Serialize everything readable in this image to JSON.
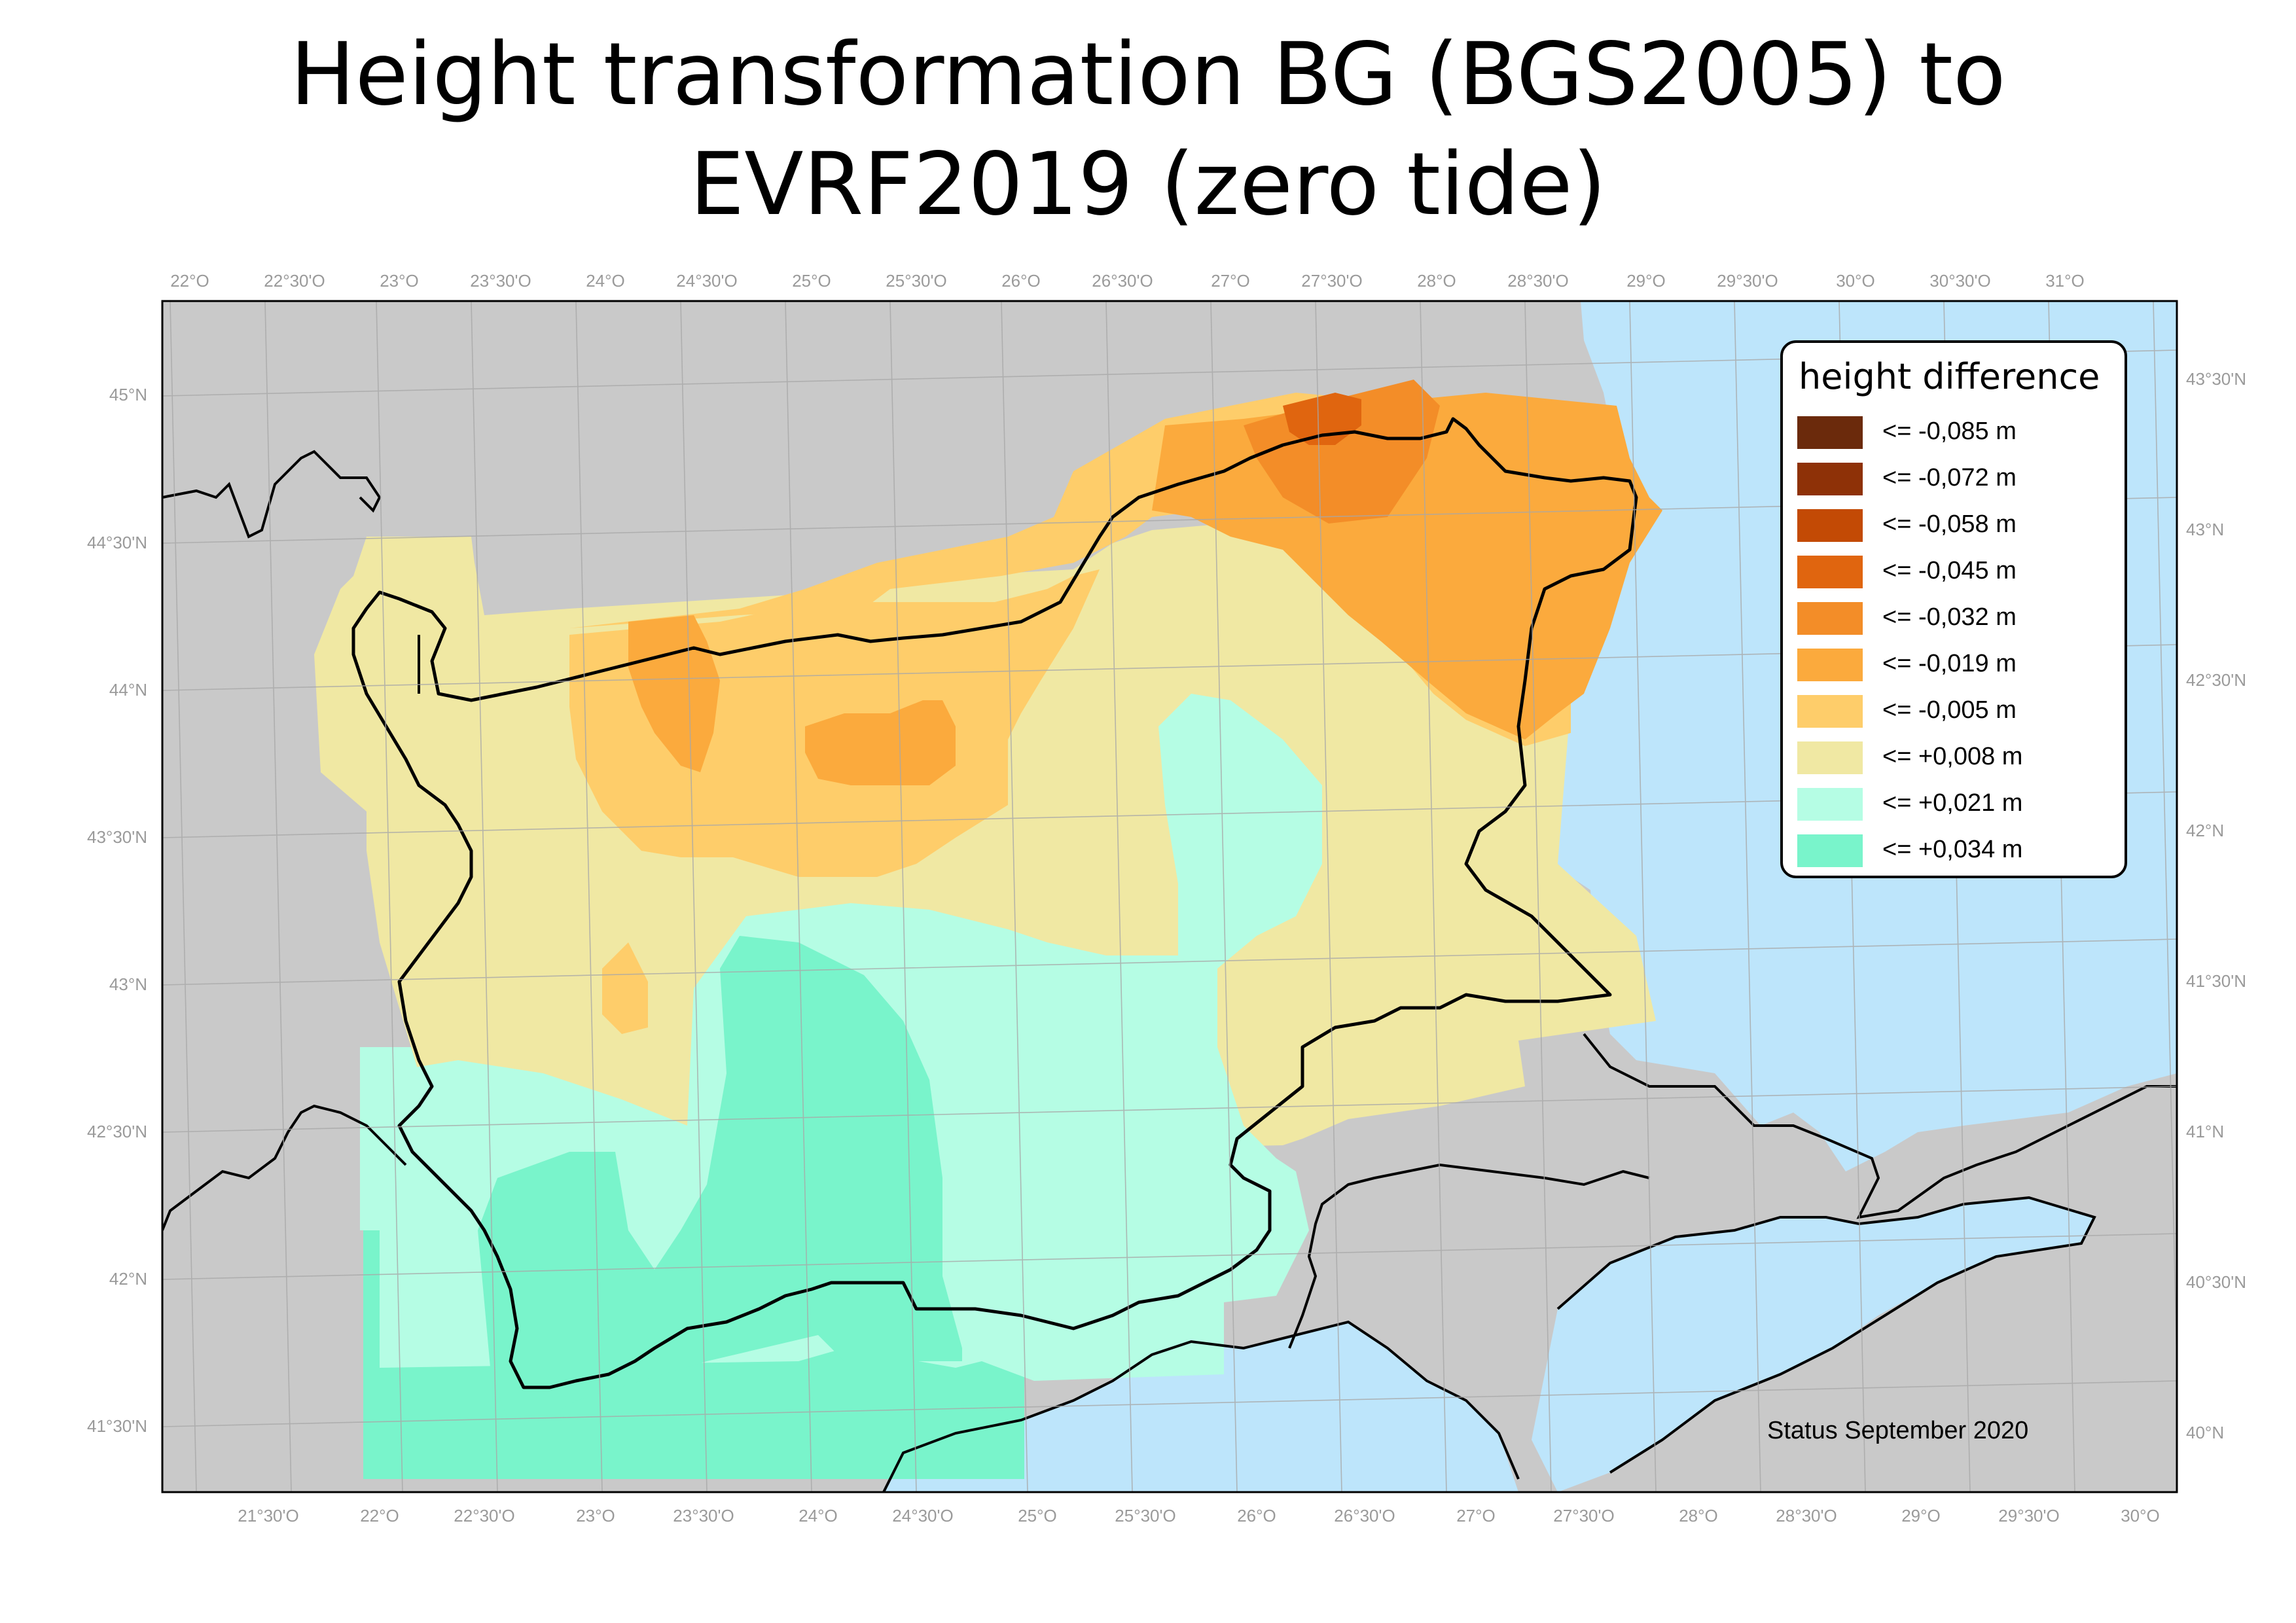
{
  "title_lines": [
    "Height transformation BG (BGS2005) to",
    "EVRF2019 (zero tide)"
  ],
  "status": "Status September 2020",
  "legend": {
    "title": "height difference",
    "classes": [
      {
        "label": "<= -0,085 m",
        "color": "#6b2a0c"
      },
      {
        "label": "<= -0,072 m",
        "color": "#8e3107"
      },
      {
        "label": "<= -0,058 m",
        "color": "#c34a05"
      },
      {
        "label": "<= -0,045 m",
        "color": "#e0650f"
      },
      {
        "label": "<= -0,032 m",
        "color": "#f38d28"
      },
      {
        "label": "<= -0,019 m",
        "color": "#fbaa3d"
      },
      {
        "label": "<= -0,005 m",
        "color": "#fecd6a"
      },
      {
        "label": "<= +0,008 m",
        "color": "#f0e8a3"
      },
      {
        "label": "<= +0,021 m",
        "color": "#b5fde4"
      },
      {
        "label": "<= +0,034 m",
        "color": "#79f4cb"
      }
    ]
  },
  "colors": {
    "land": "#c9c9c9",
    "sea": "#bde5fb",
    "border": "#000000",
    "graticule": "#a8a8a8"
  },
  "graticule_labels": {
    "top": [
      "22°O",
      "22°30'O",
      "23°O",
      "23°30'O",
      "24°O",
      "24°30'O",
      "25°O",
      "25°30'O",
      "26°O",
      "26°30'O",
      "27°O",
      "27°30'O",
      "28°O",
      "28°30'O",
      "29°O",
      "29°30'O",
      "30°O",
      "30°30'O",
      "31°O"
    ],
    "bottom": [
      "21°30'O",
      "22°O",
      "22°30'O",
      "23°O",
      "23°30'O",
      "24°O",
      "24°30'O",
      "25°O",
      "25°30'O",
      "26°O",
      "26°30'O",
      "27°O",
      "27°30'O",
      "28°O",
      "28°30'O",
      "29°O",
      "29°30'O",
      "30°O"
    ],
    "left": [
      "45°N",
      "44°30'N",
      "44°N",
      "43°30'N",
      "43°N",
      "42°30'N",
      "42°N",
      "41°30'N"
    ],
    "right": [
      "43°30'N",
      "43°N",
      "42°30'N",
      "42°N",
      "41°30'N",
      "41°N",
      "40°30'N",
      "40°N"
    ]
  }
}
